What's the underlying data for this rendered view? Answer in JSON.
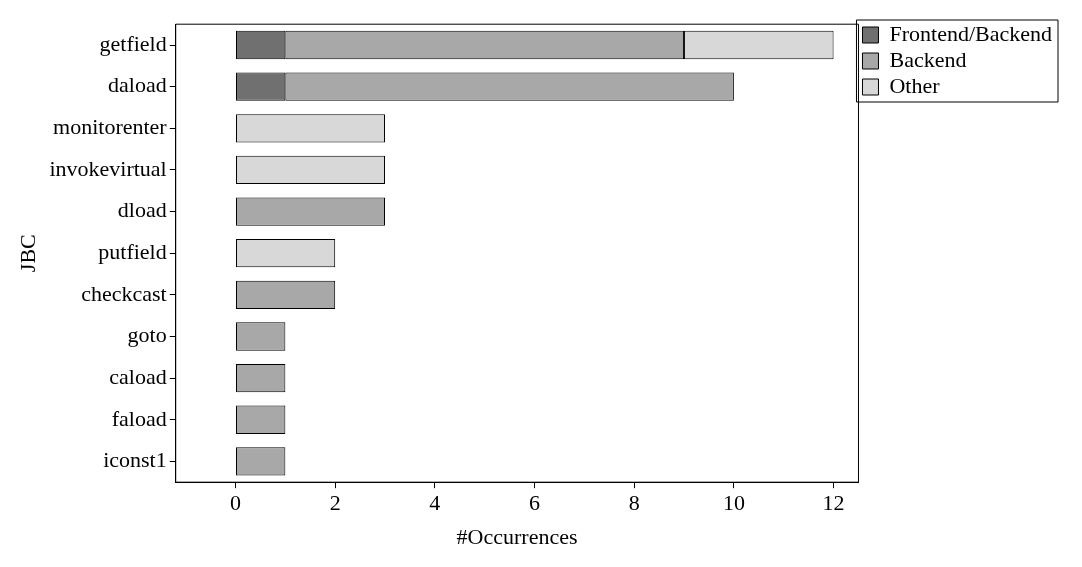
{
  "chart_data": {
    "type": "bar",
    "orientation": "horizontal",
    "stacked": true,
    "xlabel": "#Occurrences",
    "ylabel": "JBC",
    "categories": [
      "getfield",
      "daload",
      "monitorenter",
      "invokevirtual",
      "dload",
      "putfield",
      "checkcast",
      "goto",
      "caload",
      "faload",
      "iconst1"
    ],
    "series": [
      {
        "name": "Frontend/Backend",
        "color": "#707070",
        "values": [
          1,
          1,
          null,
          null,
          null,
          null,
          null,
          null,
          null,
          null,
          null
        ]
      },
      {
        "name": "Backend",
        "color": "#a8a8a8",
        "values": [
          8,
          9,
          null,
          null,
          3,
          null,
          2,
          1,
          1,
          1,
          1
        ]
      },
      {
        "name": "Other",
        "color": "#d8d8d8",
        "values": [
          3,
          null,
          3,
          3,
          null,
          2,
          null,
          null,
          null,
          null,
          null
        ]
      }
    ],
    "xlim": [
      -1.2,
      12.5
    ],
    "xticks": [
      0,
      2,
      4,
      6,
      8,
      10,
      12
    ],
    "grid": false,
    "legend": "top right"
  }
}
